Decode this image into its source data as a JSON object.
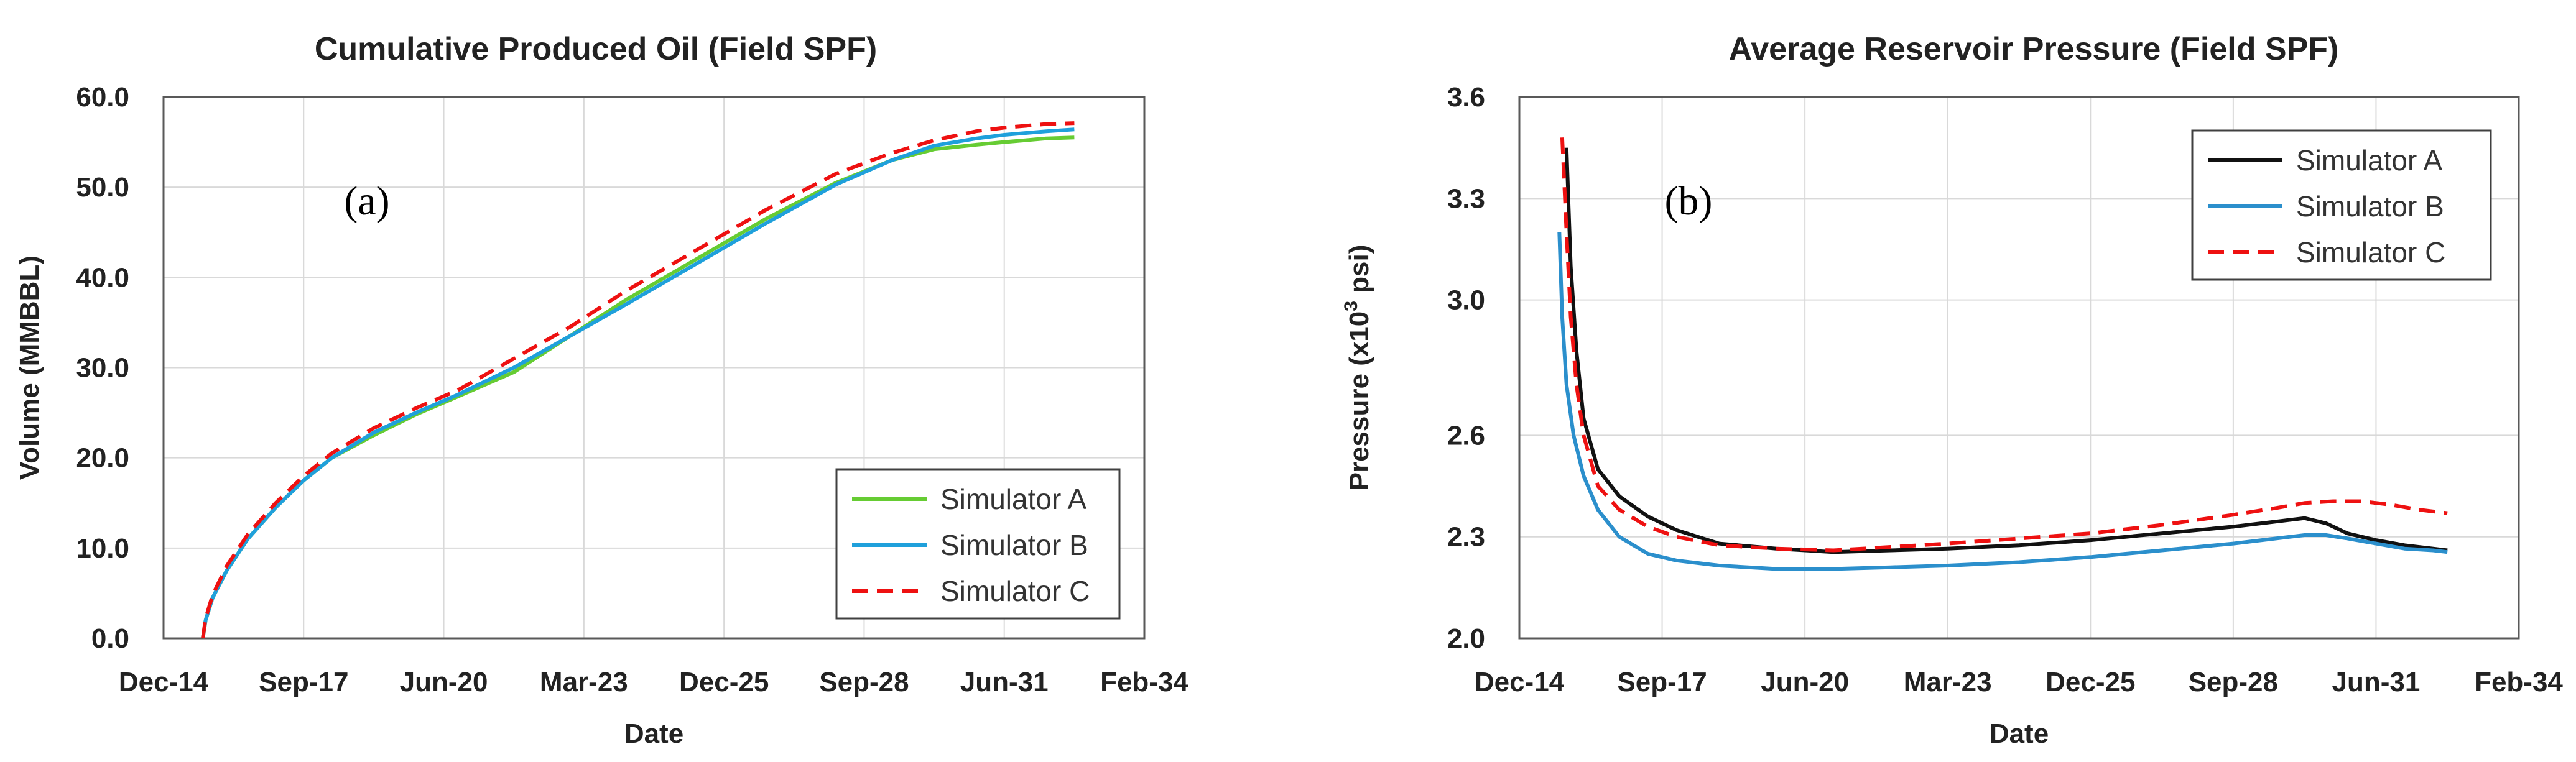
{
  "chart_data": [
    {
      "type": "line",
      "title": "Cumulative Produced Oil (Field SPF)",
      "panel_label": "(a)",
      "xlabel": "Date",
      "ylabel": "Volume (MMBBL)",
      "x_ticks": [
        "Dec-14",
        "Sep-17",
        "Jun-20",
        "Mar-23",
        "Dec-25",
        "Sep-28",
        "Jun-31",
        "Feb-34"
      ],
      "xlim": [
        0,
        7
      ],
      "y_ticks": [
        "0.0",
        "10.0",
        "20.0",
        "30.0",
        "40.0",
        "50.0",
        "60.0"
      ],
      "ylim": [
        0,
        60
      ],
      "grid": true,
      "legend_position": "bottom-right",
      "series": [
        {
          "name": "Simulator A",
          "color": "#66cc33",
          "dash": "solid",
          "x": [
            0.28,
            0.3,
            0.35,
            0.45,
            0.6,
            0.8,
            1.0,
            1.2,
            1.5,
            1.8,
            2.1,
            2.5,
            2.9,
            3.3,
            3.8,
            4.3,
            4.8,
            5.2,
            5.5,
            5.8,
            6.0,
            6.15,
            6.3,
            6.5
          ],
          "y": [
            0,
            2,
            4.5,
            7.5,
            11,
            14.5,
            17.5,
            20,
            22.5,
            24.8,
            26.8,
            29.5,
            33.5,
            37.5,
            42,
            46.5,
            50.5,
            53,
            54.2,
            54.7,
            55,
            55.2,
            55.4,
            55.5
          ]
        },
        {
          "name": "Simulator B",
          "color": "#1fa0db",
          "dash": "solid",
          "x": [
            0.28,
            0.3,
            0.35,
            0.45,
            0.6,
            0.8,
            1.0,
            1.2,
            1.5,
            1.8,
            2.1,
            2.5,
            2.9,
            3.3,
            3.8,
            4.3,
            4.8,
            5.2,
            5.5,
            5.8,
            6.0,
            6.15,
            6.3,
            6.5
          ],
          "y": [
            0,
            2,
            4.5,
            7.5,
            11,
            14.5,
            17.5,
            20,
            22.8,
            25,
            27,
            30,
            33.5,
            37,
            41.5,
            46,
            50.3,
            53,
            54.6,
            55.4,
            55.8,
            56,
            56.2,
            56.4
          ]
        },
        {
          "name": "Simulator C",
          "color": "#ee1111",
          "dash": "dashed",
          "x": [
            0.28,
            0.3,
            0.35,
            0.45,
            0.6,
            0.8,
            1.0,
            1.2,
            1.5,
            1.8,
            2.1,
            2.5,
            2.9,
            3.3,
            3.8,
            4.3,
            4.8,
            5.2,
            5.5,
            5.8,
            6.0,
            6.15,
            6.3,
            6.5
          ],
          "y": [
            0,
            2.2,
            4.8,
            8,
            11.5,
            15,
            18,
            20.5,
            23.3,
            25.5,
            27.5,
            31,
            34.5,
            38.5,
            43,
            47.5,
            51.5,
            53.8,
            55.2,
            56.2,
            56.6,
            56.8,
            57,
            57.1
          ]
        }
      ]
    },
    {
      "type": "line",
      "title": "Average Reservoir Pressure (Field SPF)",
      "panel_label": "(b)",
      "xlabel": "Date",
      "ylabel": "Pressure (x10",
      "ylabel_exp": "3",
      "ylabel_tail": " psi)",
      "x_ticks": [
        "Dec-14",
        "Sep-17",
        "Jun-20",
        "Mar-23",
        "Dec-25",
        "Sep-28",
        "Jun-31",
        "Feb-34"
      ],
      "xlim": [
        0,
        7
      ],
      "y_ticks": [
        "2.0",
        "2.3",
        "2.6",
        "3.0",
        "3.3",
        "3.6"
      ],
      "ylim": [
        2.0,
        3.6
      ],
      "grid": true,
      "legend_position": "top-right",
      "series": [
        {
          "name": "Simulator A",
          "color": "#111111",
          "dash": "solid",
          "x": [
            0.33,
            0.36,
            0.4,
            0.45,
            0.55,
            0.7,
            0.9,
            1.1,
            1.4,
            1.8,
            2.2,
            2.6,
            3.0,
            3.5,
            4.0,
            4.5,
            5.0,
            5.3,
            5.5,
            5.65,
            5.8,
            6.0,
            6.2,
            6.4,
            6.5
          ],
          "y": [
            3.45,
            3.1,
            2.85,
            2.65,
            2.5,
            2.42,
            2.36,
            2.32,
            2.28,
            2.265,
            2.255,
            2.26,
            2.265,
            2.275,
            2.29,
            2.31,
            2.33,
            2.345,
            2.355,
            2.34,
            2.31,
            2.29,
            2.275,
            2.265,
            2.26
          ]
        },
        {
          "name": "Simulator B",
          "color": "#2b8fcc",
          "dash": "solid",
          "x": [
            0.28,
            0.3,
            0.33,
            0.38,
            0.45,
            0.55,
            0.7,
            0.9,
            1.1,
            1.4,
            1.8,
            2.2,
            2.6,
            3.0,
            3.5,
            4.0,
            4.5,
            5.0,
            5.3,
            5.5,
            5.65,
            5.8,
            6.0,
            6.2,
            6.4,
            6.5
          ],
          "y": [
            3.2,
            2.95,
            2.75,
            2.6,
            2.48,
            2.38,
            2.3,
            2.25,
            2.23,
            2.215,
            2.205,
            2.205,
            2.21,
            2.215,
            2.225,
            2.24,
            2.26,
            2.28,
            2.295,
            2.305,
            2.305,
            2.295,
            2.28,
            2.265,
            2.26,
            2.255
          ]
        },
        {
          "name": "Simulator C",
          "color": "#ee1111",
          "dash": "dashed",
          "x": [
            0.3,
            0.33,
            0.36,
            0.4,
            0.45,
            0.55,
            0.7,
            0.9,
            1.1,
            1.4,
            1.8,
            2.2,
            2.6,
            3.0,
            3.5,
            4.0,
            4.5,
            5.0,
            5.3,
            5.5,
            5.7,
            5.9,
            6.1,
            6.3,
            6.5
          ],
          "y": [
            3.48,
            3.2,
            2.95,
            2.75,
            2.6,
            2.45,
            2.38,
            2.33,
            2.3,
            2.275,
            2.265,
            2.26,
            2.27,
            2.28,
            2.295,
            2.31,
            2.335,
            2.365,
            2.385,
            2.4,
            2.405,
            2.405,
            2.395,
            2.38,
            2.37
          ]
        }
      ]
    }
  ]
}
